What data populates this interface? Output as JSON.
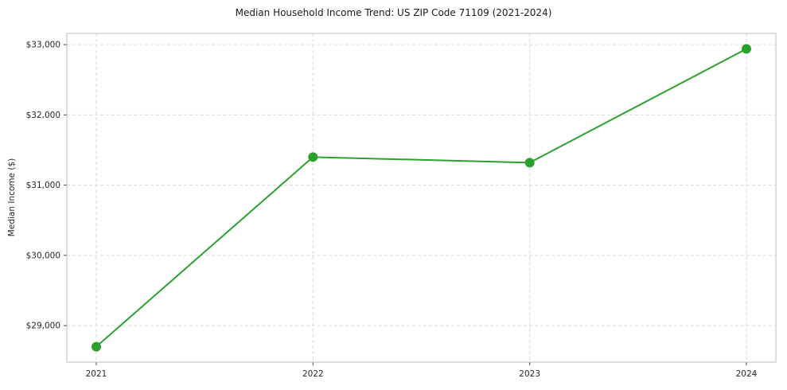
{
  "chart_data": {
    "type": "line",
    "title": "Median Household Income Trend: US ZIP Code 71109 (2021-2024)",
    "ylabel": "Median Income ($)",
    "xlabel": "",
    "categories": [
      "2021",
      "2022",
      "2023",
      "2024"
    ],
    "values": [
      28700,
      31400,
      31320,
      32940
    ],
    "yticks": [
      29000,
      30000,
      31000,
      32000,
      33000
    ],
    "ytick_labels": [
      "$29,000",
      "$30,000",
      "$31,000",
      "$32,000",
      "$33,000"
    ],
    "ylim": [
      28480,
      33160
    ],
    "grid": true,
    "legend_position": "none",
    "line_color": "#2ca02c",
    "marker_color": "#2ca02c",
    "grid_color": "#d9d9d9",
    "spine_color": "#bdbdbd",
    "tick_color": "#444444"
  }
}
